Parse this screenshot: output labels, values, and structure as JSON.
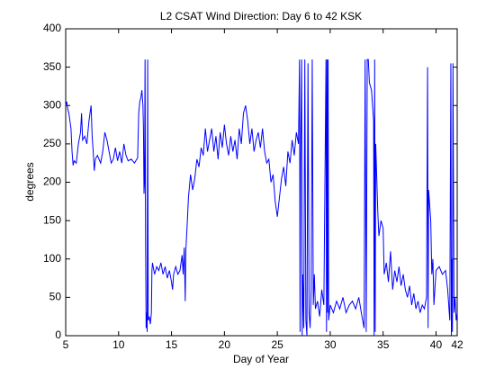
{
  "chart_data": {
    "type": "line",
    "title": "L2 CSAT Wind Direction: Day 6 to 42 KSK",
    "xlabel": "Day of Year",
    "ylabel": "degrees",
    "color": "#0000ff",
    "xlim": [
      5,
      42
    ],
    "ylim": [
      0,
      400
    ],
    "xticks": [
      5,
      10,
      15,
      20,
      25,
      30,
      35,
      40,
      42
    ],
    "yticks": [
      0,
      50,
      100,
      150,
      200,
      250,
      300,
      350,
      400
    ],
    "x": [
      5.0,
      5.1,
      5.2,
      5.3,
      5.4,
      5.5,
      5.6,
      5.7,
      5.8,
      6.0,
      6.2,
      6.4,
      6.5,
      6.6,
      6.8,
      7.0,
      7.2,
      7.4,
      7.5,
      7.6,
      7.7,
      7.8,
      8.0,
      8.3,
      8.5,
      8.7,
      8.9,
      9.1,
      9.3,
      9.5,
      9.7,
      9.9,
      10.1,
      10.3,
      10.5,
      10.7,
      10.9,
      11.2,
      11.5,
      11.8,
      11.9,
      12.0,
      12.1,
      12.2,
      12.3,
      12.35,
      12.4,
      12.45,
      12.5,
      12.55,
      12.6,
      12.65,
      12.7,
      12.75,
      12.8,
      12.9,
      13.0,
      13.1,
      13.15,
      13.2,
      13.4,
      13.6,
      13.8,
      14.0,
      14.2,
      14.4,
      14.6,
      14.8,
      15.0,
      15.1,
      15.2,
      15.4,
      15.6,
      15.8,
      16.0,
      16.1,
      16.2,
      16.3,
      16.35,
      16.5,
      16.6,
      16.8,
      17.0,
      17.2,
      17.4,
      17.6,
      17.8,
      18.0,
      18.2,
      18.4,
      18.6,
      18.8,
      19.0,
      19.2,
      19.4,
      19.6,
      19.8,
      20.0,
      20.2,
      20.4,
      20.6,
      20.8,
      21.0,
      21.2,
      21.4,
      21.6,
      21.8,
      22.0,
      22.2,
      22.4,
      22.6,
      22.8,
      23.0,
      23.2,
      23.4,
      23.6,
      23.8,
      24.0,
      24.2,
      24.4,
      24.6,
      24.8,
      25.0,
      25.2,
      25.4,
      25.6,
      25.8,
      26.0,
      26.2,
      26.4,
      26.6,
      26.8,
      27.0,
      27.1,
      27.15,
      27.2,
      27.3,
      27.35,
      27.4,
      27.5,
      27.6,
      27.7,
      27.8,
      27.9,
      28.0,
      28.1,
      28.2,
      28.3,
      28.4,
      28.5,
      28.6,
      28.8,
      29.0,
      29.2,
      29.4,
      29.6,
      29.65,
      29.7,
      29.75,
      29.8,
      29.85,
      30.0,
      30.3,
      30.6,
      30.9,
      31.2,
      31.5,
      31.8,
      32.1,
      32.4,
      32.7,
      33.0,
      33.2,
      33.3,
      33.4,
      33.5,
      33.6,
      33.7,
      33.9,
      34.0,
      34.1,
      34.15,
      34.2,
      34.25,
      34.3,
      34.5,
      34.6,
      34.8,
      35.0,
      35.1,
      35.3,
      35.5,
      35.7,
      35.9,
      36.1,
      36.3,
      36.5,
      36.7,
      36.9,
      37.1,
      37.3,
      37.5,
      37.7,
      37.9,
      38.1,
      38.3,
      38.5,
      38.7,
      38.9,
      39.1,
      39.2,
      39.25,
      39.3,
      39.4,
      39.5,
      39.6,
      39.7,
      39.8,
      40.0,
      40.3,
      40.6,
      40.9,
      41.1,
      41.3,
      41.4,
      41.45,
      41.5,
      41.55,
      41.6,
      41.7,
      41.8,
      41.9,
      42.0
    ],
    "values": [
      300,
      305,
      295,
      290,
      280,
      270,
      240,
      222,
      228,
      225,
      250,
      265,
      290,
      255,
      260,
      250,
      280,
      300,
      260,
      240,
      215,
      230,
      235,
      225,
      240,
      265,
      255,
      240,
      225,
      230,
      245,
      228,
      240,
      225,
      250,
      235,
      228,
      230,
      225,
      232,
      290,
      305,
      310,
      320,
      300,
      270,
      185,
      200,
      360,
      120,
      10,
      30,
      5,
      360,
      20,
      25,
      15,
      30,
      85,
      95,
      80,
      90,
      85,
      95,
      80,
      90,
      75,
      85,
      70,
      60,
      80,
      90,
      80,
      85,
      105,
      80,
      115,
      45,
      110,
      150,
      180,
      210,
      190,
      205,
      230,
      220,
      245,
      235,
      270,
      240,
      255,
      270,
      240,
      260,
      230,
      265,
      245,
      275,
      250,
      235,
      260,
      240,
      255,
      230,
      270,
      250,
      290,
      300,
      280,
      250,
      270,
      240,
      255,
      265,
      245,
      270,
      240,
      225,
      230,
      200,
      210,
      175,
      155,
      180,
      205,
      220,
      195,
      240,
      225,
      255,
      235,
      265,
      250,
      360,
      5,
      230,
      360,
      0,
      80,
      10,
      360,
      20,
      0,
      355,
      30,
      10,
      60,
      360,
      40,
      80,
      35,
      45,
      25,
      60,
      40,
      360,
      5,
      360,
      30,
      360,
      20,
      40,
      30,
      45,
      35,
      50,
      30,
      40,
      45,
      35,
      50,
      25,
      10,
      360,
      5,
      360,
      360,
      330,
      320,
      300,
      280,
      0,
      360,
      5,
      250,
      160,
      130,
      150,
      140,
      80,
      95,
      70,
      110,
      60,
      85,
      70,
      90,
      65,
      80,
      60,
      50,
      65,
      40,
      55,
      35,
      45,
      30,
      40,
      35,
      50,
      350,
      10,
      190,
      170,
      150,
      80,
      100,
      40,
      85,
      90,
      80,
      85,
      60,
      20,
      355,
      0,
      100,
      5,
      355,
      30,
      50,
      20,
      30
    ]
  }
}
